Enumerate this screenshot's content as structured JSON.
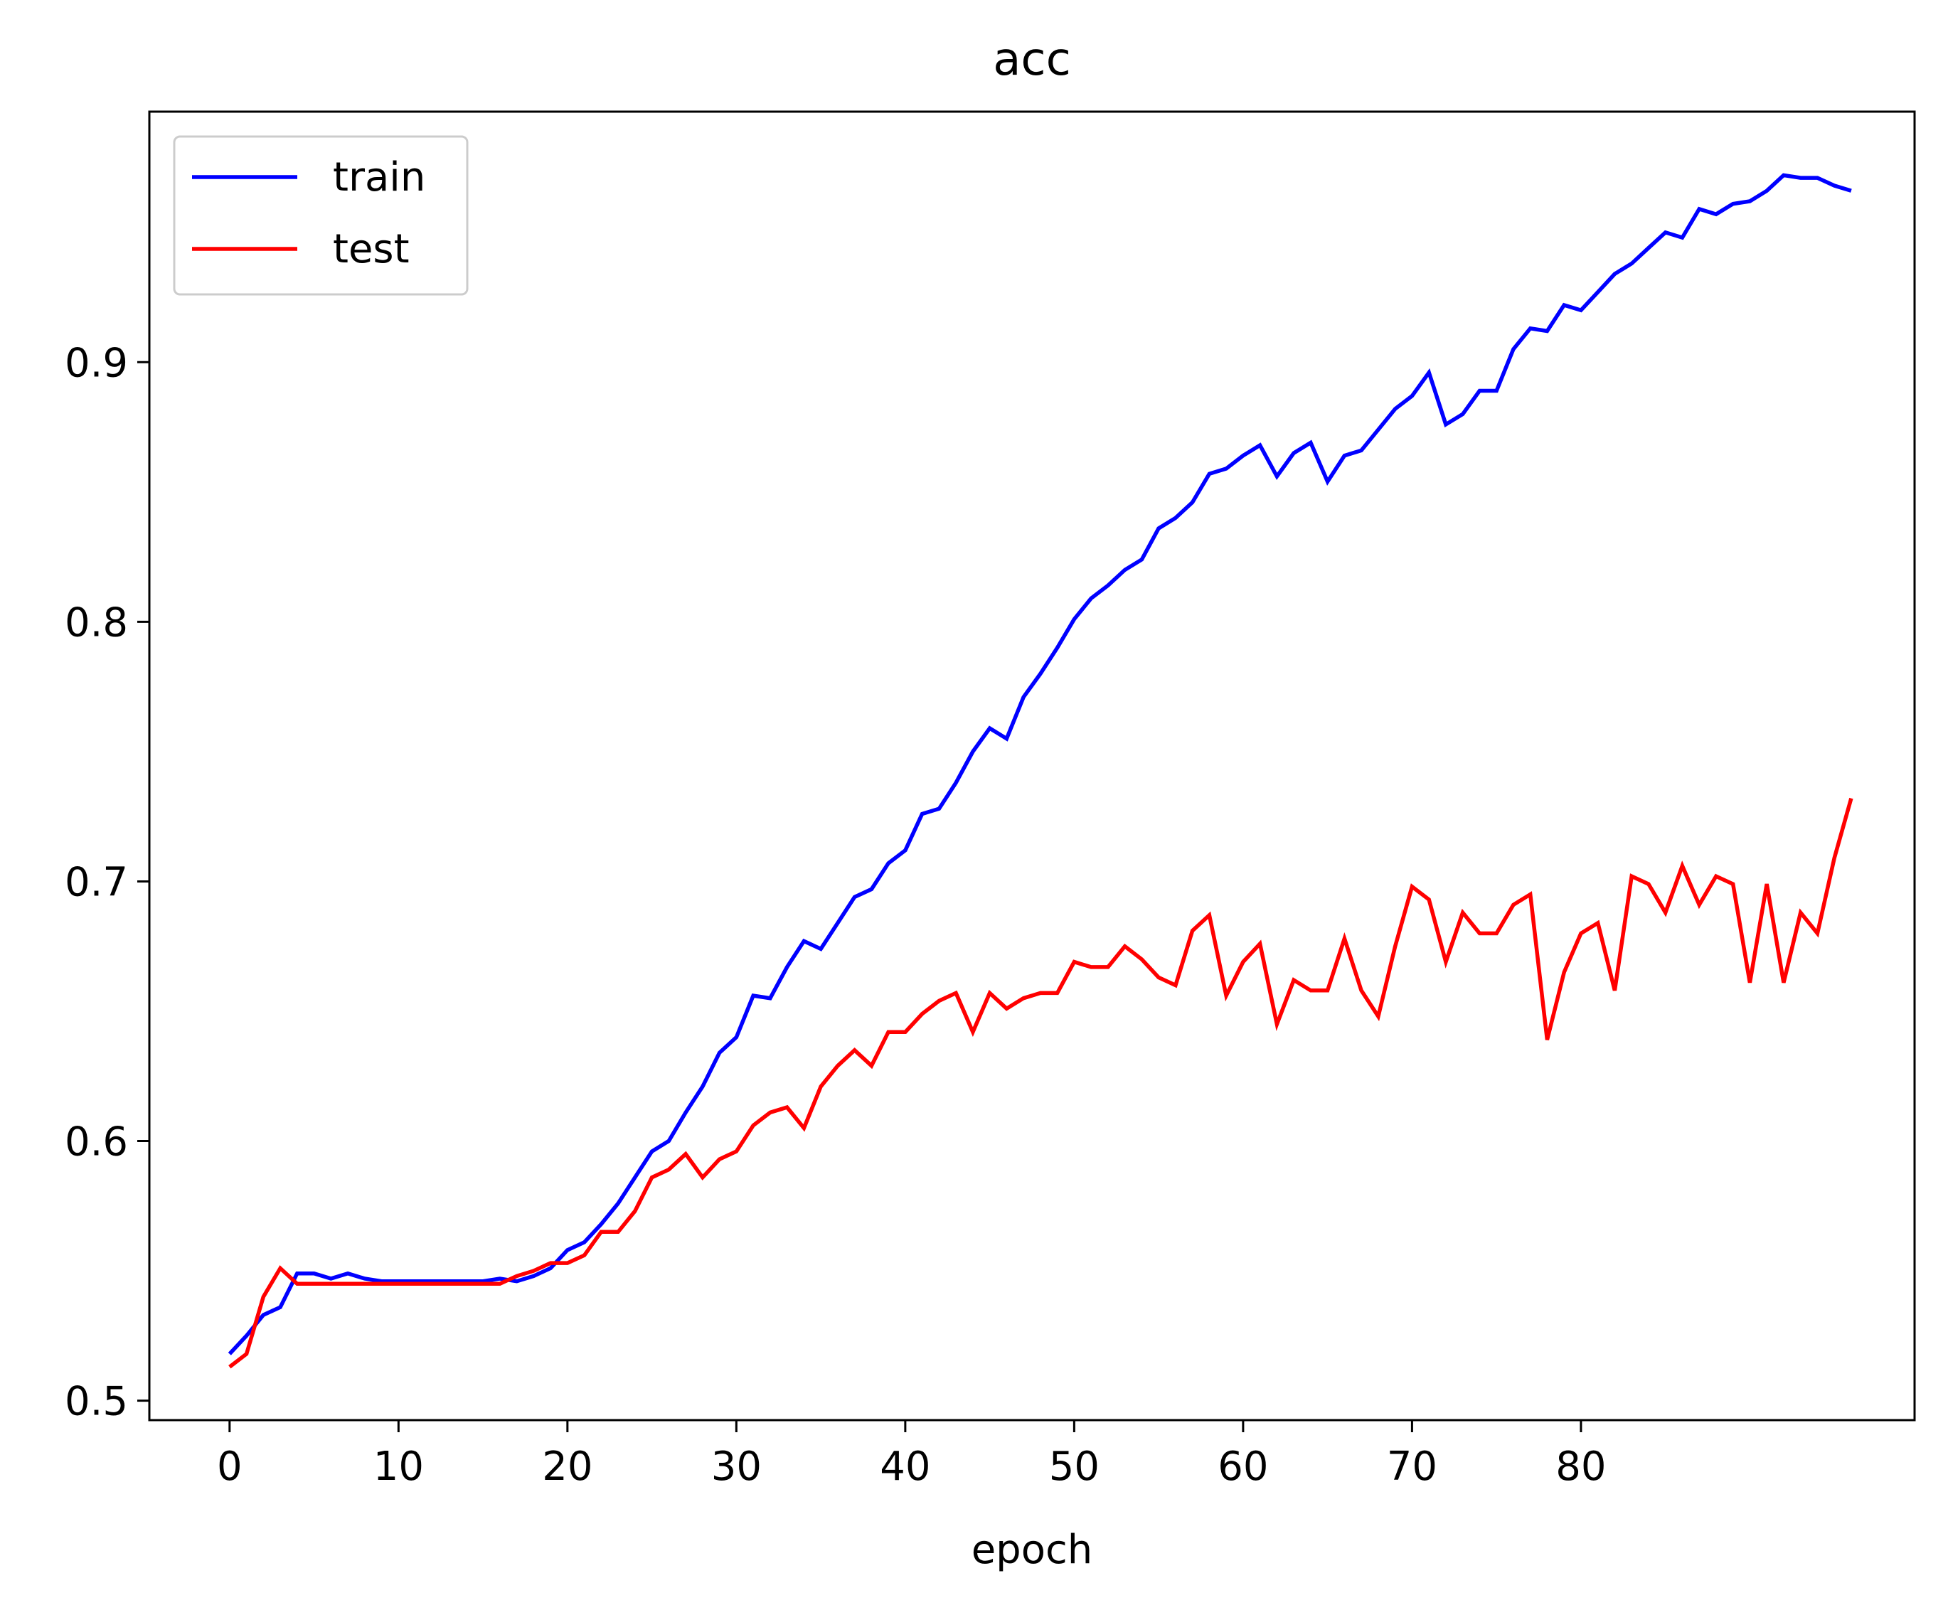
{
  "chart_data": {
    "type": "line",
    "title": "acc",
    "xlabel": "epoch",
    "ylabel": "",
    "xlim": [
      -4.75,
      99.75
    ],
    "ylim": [
      0.4925,
      0.9965
    ],
    "xticks": [
      0,
      10,
      20,
      30,
      40,
      50,
      60,
      70,
      80
    ],
    "xtick_labels": [
      "0",
      "10",
      "20",
      "30",
      "40",
      "50",
      "60",
      "70",
      "80"
    ],
    "yticks": [
      0.5,
      0.6,
      0.7,
      0.8,
      0.9
    ],
    "ytick_labels": [
      "0.5",
      "0.6",
      "0.7",
      "0.8",
      "0.9"
    ],
    "grid": false,
    "legend_position": "top-left",
    "x": [
      0,
      1,
      2,
      3,
      4,
      5,
      6,
      7,
      8,
      9,
      10,
      11,
      12,
      13,
      14,
      15,
      16,
      17,
      18,
      19,
      20,
      21,
      22,
      23,
      24,
      25,
      26,
      27,
      28,
      29,
      30,
      31,
      32,
      33,
      34,
      35,
      36,
      37,
      38,
      39,
      40,
      41,
      42,
      43,
      44,
      45,
      46,
      47,
      48,
      49,
      50,
      51,
      52,
      53,
      54,
      55,
      56,
      57,
      58,
      59,
      60,
      61,
      62,
      63,
      64,
      65,
      66,
      67,
      68,
      69,
      70,
      71,
      72,
      73,
      74,
      75,
      76,
      77,
      78,
      79,
      80,
      81,
      82,
      83,
      84,
      85,
      86,
      87,
      88,
      89,
      90,
      91,
      92,
      93,
      94,
      95,
      96
    ],
    "series": [
      {
        "name": "train",
        "color": "#0000ff",
        "values": [
          0.518,
          0.525,
          0.533,
          0.536,
          0.549,
          0.549,
          0.547,
          0.549,
          0.547,
          0.546,
          0.546,
          0.546,
          0.546,
          0.546,
          0.546,
          0.546,
          0.547,
          0.546,
          0.548,
          0.551,
          0.558,
          0.561,
          0.568,
          0.576,
          0.586,
          0.596,
          0.6,
          0.611,
          0.621,
          0.634,
          0.64,
          0.656,
          0.655,
          0.667,
          0.677,
          0.674,
          0.684,
          0.694,
          0.697,
          0.707,
          0.712,
          0.726,
          0.728,
          0.738,
          0.75,
          0.759,
          0.755,
          0.771,
          0.78,
          0.79,
          0.801,
          0.809,
          0.814,
          0.82,
          0.824,
          0.836,
          0.84,
          0.846,
          0.857,
          0.859,
          0.864,
          0.868,
          0.856,
          0.865,
          0.869,
          0.854,
          0.864,
          0.866,
          0.874,
          0.882,
          0.887,
          0.896,
          0.876,
          0.88,
          0.889,
          0.889,
          0.905,
          0.913,
          0.912,
          0.922,
          0.92,
          0.927,
          0.934,
          0.938,
          0.944,
          0.95,
          0.948,
          0.959,
          0.957,
          0.961,
          0.962,
          0.966,
          0.972,
          0.971,
          0.971,
          0.968,
          0.966
        ]
      },
      {
        "name": "test",
        "color": "#ff0000",
        "values": [
          0.513,
          0.518,
          0.54,
          0.551,
          0.545,
          0.545,
          0.545,
          0.545,
          0.545,
          0.545,
          0.545,
          0.545,
          0.545,
          0.545,
          0.545,
          0.545,
          0.545,
          0.548,
          0.55,
          0.553,
          0.553,
          0.556,
          0.565,
          0.565,
          0.573,
          0.586,
          0.589,
          0.595,
          0.586,
          0.593,
          0.596,
          0.606,
          0.611,
          0.613,
          0.605,
          0.621,
          0.629,
          0.635,
          0.629,
          0.642,
          0.642,
          0.649,
          0.654,
          0.657,
          0.642,
          0.657,
          0.651,
          0.655,
          0.657,
          0.657,
          0.669,
          0.667,
          0.667,
          0.675,
          0.67,
          0.663,
          0.66,
          0.681,
          0.687,
          0.656,
          0.669,
          0.676,
          0.645,
          0.662,
          0.658,
          0.658,
          0.678,
          0.658,
          0.648,
          0.675,
          0.698,
          0.693,
          0.669,
          0.688,
          0.68,
          0.68,
          0.691,
          0.695,
          0.639,
          0.665,
          0.68,
          0.684,
          0.658,
          0.702,
          0.699,
          0.688,
          0.706,
          0.691,
          0.702,
          0.699,
          0.661,
          0.699,
          0.661,
          0.688,
          0.68,
          0.709,
          0.732
        ]
      }
    ]
  }
}
